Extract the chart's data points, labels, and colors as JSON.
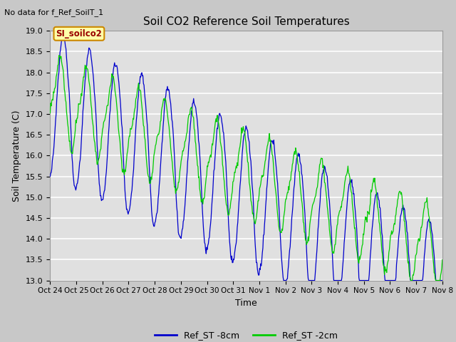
{
  "title": "Soil CO2 Reference Soil Temperatures",
  "no_data_label": "No data for f_Ref_SoilT_1",
  "site_label": "SI_soilco2",
  "xlabel": "Time",
  "ylabel": "Soil Temperature (C)",
  "ylim": [
    13.0,
    19.0
  ],
  "yticks": [
    13.0,
    13.5,
    14.0,
    14.5,
    15.0,
    15.5,
    16.0,
    16.5,
    17.0,
    17.5,
    18.0,
    18.5,
    19.0
  ],
  "xtick_labels": [
    "Oct 24",
    "Oct 25",
    "Oct 26",
    "Oct 27",
    "Oct 28",
    "Oct 29",
    "Oct 30",
    "Oct 31",
    "Nov 1",
    "Nov 2",
    "Nov 3",
    "Nov 4",
    "Nov 5",
    "Nov 6",
    "Nov 7",
    "Nov 8"
  ],
  "legend_blue": "Ref_ST -8cm",
  "legend_green": "Ref_ST -2cm",
  "blue_color": "#0000cc",
  "green_color": "#00cc00",
  "fig_bg": "#c8c8c8",
  "plot_bg": "#e0e0e0",
  "grid_color": "white",
  "figsize": [
    6.4,
    4.8
  ],
  "dpi": 100,
  "n_days": 15,
  "n_points_per_day": 48
}
